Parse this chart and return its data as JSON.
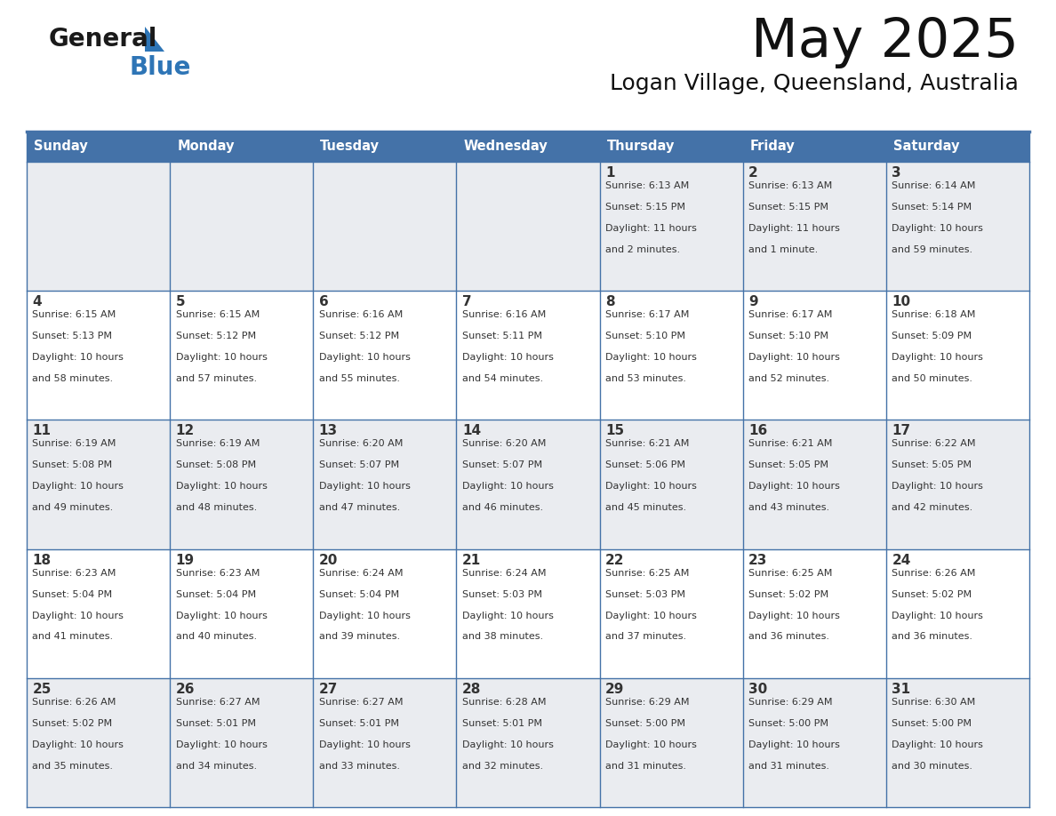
{
  "title": "May 2025",
  "subtitle": "Logan Village, Queensland, Australia",
  "header_color": "#4472A8",
  "header_text_color": "#FFFFFF",
  "cell_bg_odd": "#EAECF0",
  "cell_bg_even": "#FFFFFF",
  "text_color": "#333333",
  "line_color": "#4472A8",
  "logo_general_color": "#1a1a1a",
  "logo_blue_color": "#2E75B6",
  "day_headers": [
    "Sunday",
    "Monday",
    "Tuesday",
    "Wednesday",
    "Thursday",
    "Friday",
    "Saturday"
  ],
  "calendar": [
    [
      {
        "day": "",
        "sunrise": "",
        "sunset": "",
        "daylight": ""
      },
      {
        "day": "",
        "sunrise": "",
        "sunset": "",
        "daylight": ""
      },
      {
        "day": "",
        "sunrise": "",
        "sunset": "",
        "daylight": ""
      },
      {
        "day": "",
        "sunrise": "",
        "sunset": "",
        "daylight": ""
      },
      {
        "day": "1",
        "sunrise": "6:13 AM",
        "sunset": "5:15 PM",
        "daylight": "11 hours\nand 2 minutes."
      },
      {
        "day": "2",
        "sunrise": "6:13 AM",
        "sunset": "5:15 PM",
        "daylight": "11 hours\nand 1 minute."
      },
      {
        "day": "3",
        "sunrise": "6:14 AM",
        "sunset": "5:14 PM",
        "daylight": "10 hours\nand 59 minutes."
      }
    ],
    [
      {
        "day": "4",
        "sunrise": "6:15 AM",
        "sunset": "5:13 PM",
        "daylight": "10 hours\nand 58 minutes."
      },
      {
        "day": "5",
        "sunrise": "6:15 AM",
        "sunset": "5:12 PM",
        "daylight": "10 hours\nand 57 minutes."
      },
      {
        "day": "6",
        "sunrise": "6:16 AM",
        "sunset": "5:12 PM",
        "daylight": "10 hours\nand 55 minutes."
      },
      {
        "day": "7",
        "sunrise": "6:16 AM",
        "sunset": "5:11 PM",
        "daylight": "10 hours\nand 54 minutes."
      },
      {
        "day": "8",
        "sunrise": "6:17 AM",
        "sunset": "5:10 PM",
        "daylight": "10 hours\nand 53 minutes."
      },
      {
        "day": "9",
        "sunrise": "6:17 AM",
        "sunset": "5:10 PM",
        "daylight": "10 hours\nand 52 minutes."
      },
      {
        "day": "10",
        "sunrise": "6:18 AM",
        "sunset": "5:09 PM",
        "daylight": "10 hours\nand 50 minutes."
      }
    ],
    [
      {
        "day": "11",
        "sunrise": "6:19 AM",
        "sunset": "5:08 PM",
        "daylight": "10 hours\nand 49 minutes."
      },
      {
        "day": "12",
        "sunrise": "6:19 AM",
        "sunset": "5:08 PM",
        "daylight": "10 hours\nand 48 minutes."
      },
      {
        "day": "13",
        "sunrise": "6:20 AM",
        "sunset": "5:07 PM",
        "daylight": "10 hours\nand 47 minutes."
      },
      {
        "day": "14",
        "sunrise": "6:20 AM",
        "sunset": "5:07 PM",
        "daylight": "10 hours\nand 46 minutes."
      },
      {
        "day": "15",
        "sunrise": "6:21 AM",
        "sunset": "5:06 PM",
        "daylight": "10 hours\nand 45 minutes."
      },
      {
        "day": "16",
        "sunrise": "6:21 AM",
        "sunset": "5:05 PM",
        "daylight": "10 hours\nand 43 minutes."
      },
      {
        "day": "17",
        "sunrise": "6:22 AM",
        "sunset": "5:05 PM",
        "daylight": "10 hours\nand 42 minutes."
      }
    ],
    [
      {
        "day": "18",
        "sunrise": "6:23 AM",
        "sunset": "5:04 PM",
        "daylight": "10 hours\nand 41 minutes."
      },
      {
        "day": "19",
        "sunrise": "6:23 AM",
        "sunset": "5:04 PM",
        "daylight": "10 hours\nand 40 minutes."
      },
      {
        "day": "20",
        "sunrise": "6:24 AM",
        "sunset": "5:04 PM",
        "daylight": "10 hours\nand 39 minutes."
      },
      {
        "day": "21",
        "sunrise": "6:24 AM",
        "sunset": "5:03 PM",
        "daylight": "10 hours\nand 38 minutes."
      },
      {
        "day": "22",
        "sunrise": "6:25 AM",
        "sunset": "5:03 PM",
        "daylight": "10 hours\nand 37 minutes."
      },
      {
        "day": "23",
        "sunrise": "6:25 AM",
        "sunset": "5:02 PM",
        "daylight": "10 hours\nand 36 minutes."
      },
      {
        "day": "24",
        "sunrise": "6:26 AM",
        "sunset": "5:02 PM",
        "daylight": "10 hours\nand 36 minutes."
      }
    ],
    [
      {
        "day": "25",
        "sunrise": "6:26 AM",
        "sunset": "5:02 PM",
        "daylight": "10 hours\nand 35 minutes."
      },
      {
        "day": "26",
        "sunrise": "6:27 AM",
        "sunset": "5:01 PM",
        "daylight": "10 hours\nand 34 minutes."
      },
      {
        "day": "27",
        "sunrise": "6:27 AM",
        "sunset": "5:01 PM",
        "daylight": "10 hours\nand 33 minutes."
      },
      {
        "day": "28",
        "sunrise": "6:28 AM",
        "sunset": "5:01 PM",
        "daylight": "10 hours\nand 32 minutes."
      },
      {
        "day": "29",
        "sunrise": "6:29 AM",
        "sunset": "5:00 PM",
        "daylight": "10 hours\nand 31 minutes."
      },
      {
        "day": "30",
        "sunrise": "6:29 AM",
        "sunset": "5:00 PM",
        "daylight": "10 hours\nand 31 minutes."
      },
      {
        "day": "31",
        "sunrise": "6:30 AM",
        "sunset": "5:00 PM",
        "daylight": "10 hours\nand 30 minutes."
      }
    ]
  ]
}
